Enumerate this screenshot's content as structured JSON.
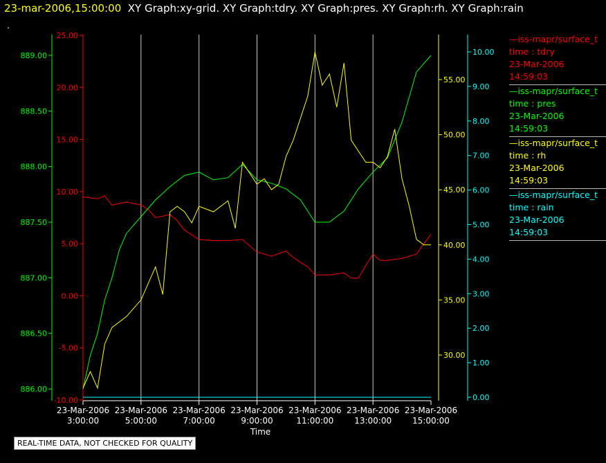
{
  "title": {
    "time": "23-mar-2006,15:00:00",
    "graphs": "XY Graph:xy-grid.  XY Graph:tdry.  XY Graph:pres.  XY Graph:rh.  XY Graph:rain"
  },
  "dot": ".",
  "quality_note": "REAL-TIME DATA, NOT CHECKED FOR QUALITY",
  "colors": {
    "tdry": "#ff0000",
    "pres": "#00ff00",
    "rh": "#ffff00",
    "rain": "#00ffff",
    "grid": "#cccccc"
  },
  "legend": [
    {
      "line": "—iss-mapr/surface_t",
      "var": "time : tdry",
      "date": "23-Mar-2006",
      "time": "14:59:03",
      "color": "#ff0000"
    },
    {
      "line": "—iss-mapr/surface_t",
      "var": "time : pres",
      "date": "23-Mar-2006",
      "time": "14:59:03",
      "color": "#00ff00"
    },
    {
      "line": "—iss-mapr/surface_t",
      "var": "time : rh",
      "date": "23-Mar-2006",
      "time": "14:59:03",
      "color": "#ffff00"
    },
    {
      "line": "—iss-mapr/surface_t",
      "var": "time : rain",
      "date": "23-Mar-2006",
      "time": "14:59:03",
      "color": "#00ffff"
    }
  ],
  "chart_data": {
    "type": "line",
    "xlabel": "Time",
    "x_ticks": [
      {
        "date": "23-Mar-2006",
        "time": "3:00:00",
        "hour": 3
      },
      {
        "date": "23-Mar-2006",
        "time": "5:00:00",
        "hour": 5
      },
      {
        "date": "23-Mar-2006",
        "time": "7:00:00",
        "hour": 7
      },
      {
        "date": "23-Mar-2006",
        "time": "9:00:00",
        "hour": 9
      },
      {
        "date": "23-Mar-2006",
        "time": "11:00:00",
        "hour": 11
      },
      {
        "date": "23-Mar-2006",
        "time": "13:00:00",
        "hour": 13
      },
      {
        "date": "23-Mar-2006",
        "time": "15:00:00",
        "hour": 15
      }
    ],
    "xlim": [
      3,
      15
    ],
    "grid": true,
    "axes": {
      "pres": {
        "ylim": [
          886.0,
          889.0
        ],
        "ticks": [
          "886.00",
          "886.50",
          "887.00",
          "887.50",
          "888.00",
          "888.50",
          "889.00"
        ]
      },
      "tdry": {
        "ylim": [
          -10,
          25
        ],
        "ticks": [
          "-10.00",
          "-5.00",
          "0.00",
          "5.00",
          "10.00",
          "15.00",
          "20.00",
          "25.00"
        ]
      },
      "rh": {
        "ylim": [
          30,
          55
        ],
        "ticks": [
          "30.00",
          "35.00",
          "40.00",
          "45.00",
          "50.00",
          "55.00"
        ]
      },
      "rain": {
        "ylim": [
          0,
          10
        ],
        "ticks": [
          "0.00",
          "1.00",
          "2.00",
          "3.00",
          "4.00",
          "5.00",
          "6.00",
          "7.00",
          "8.00",
          "9.00",
          "10.00"
        ]
      }
    },
    "series": [
      {
        "name": "tdry",
        "axis": "tdry",
        "color": "#ff0000",
        "x": [
          3.0,
          3.5,
          3.75,
          4.0,
          4.5,
          5.0,
          5.25,
          5.5,
          6.0,
          6.25,
          6.5,
          7.0,
          7.5,
          8.0,
          8.5,
          9.0,
          9.5,
          10.0,
          10.25,
          10.5,
          10.75,
          11.0,
          11.5,
          12.0,
          12.25,
          12.5,
          12.75,
          13.0,
          13.25,
          13.5,
          14.0,
          14.5,
          15.0
        ],
        "y": [
          9.5,
          9.3,
          9.6,
          8.7,
          9.0,
          8.7,
          8.3,
          7.5,
          7.8,
          7.2,
          6.3,
          5.4,
          5.3,
          5.3,
          5.4,
          4.2,
          3.8,
          4.3,
          3.7,
          3.2,
          2.8,
          2.0,
          2.0,
          2.2,
          1.7,
          1.7,
          2.9,
          4.0,
          3.4,
          3.4,
          3.6,
          4.0,
          5.9
        ]
      },
      {
        "name": "pres",
        "axis": "pres",
        "color": "#00ff00",
        "x": [
          3.0,
          3.25,
          3.5,
          3.75,
          4.0,
          4.25,
          4.5,
          5.0,
          5.5,
          6.0,
          6.5,
          7.0,
          7.5,
          8.0,
          8.5,
          9.0,
          9.5,
          10.0,
          10.5,
          11.0,
          11.5,
          12.0,
          12.5,
          13.0,
          13.5,
          14.0,
          14.5,
          15.0
        ],
        "y": [
          886.0,
          886.3,
          886.5,
          886.8,
          887.0,
          887.25,
          887.4,
          887.55,
          887.7,
          887.82,
          887.92,
          887.95,
          887.88,
          887.9,
          888.02,
          887.88,
          887.85,
          887.8,
          887.7,
          887.5,
          887.5,
          887.6,
          887.8,
          887.95,
          888.08,
          888.4,
          888.85,
          889.0
        ]
      },
      {
        "name": "rh",
        "axis": "rh",
        "color": "#ffff00",
        "x": [
          3.0,
          3.25,
          3.5,
          3.75,
          4.0,
          4.5,
          5.0,
          5.5,
          5.75,
          6.0,
          6.25,
          6.5,
          6.75,
          7.0,
          7.5,
          8.0,
          8.25,
          8.5,
          9.0,
          9.25,
          9.5,
          9.75,
          10.0,
          10.25,
          10.5,
          10.75,
          11.0,
          11.25,
          11.5,
          11.75,
          12.0,
          12.25,
          12.5,
          12.75,
          13.0,
          13.25,
          13.5,
          13.75,
          14.0,
          14.25,
          14.5,
          14.75,
          15.0
        ],
        "y": [
          27.0,
          28.5,
          27.0,
          31.0,
          32.5,
          33.5,
          35.0,
          38.0,
          35.5,
          43.0,
          43.5,
          43.0,
          42.0,
          43.5,
          43.0,
          44.0,
          41.5,
          47.5,
          45.5,
          46.0,
          45.0,
          45.5,
          48.0,
          49.5,
          51.5,
          53.5,
          57.5,
          54.5,
          55.5,
          52.5,
          56.5,
          49.5,
          48.5,
          47.5,
          47.5,
          47.0,
          48.0,
          50.5,
          46.0,
          43.5,
          40.5,
          40.0,
          40.0
        ]
      },
      {
        "name": "rain",
        "axis": "rain",
        "color": "#00ffff",
        "x": [
          3.0,
          15.0
        ],
        "y": [
          0.0,
          0.0
        ]
      }
    ]
  }
}
